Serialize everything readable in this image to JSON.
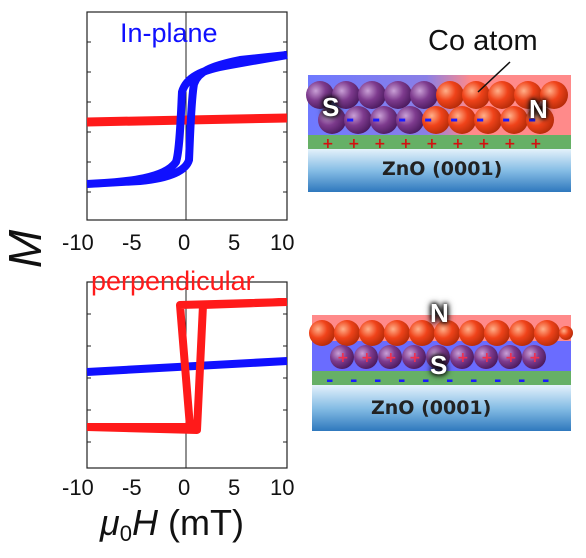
{
  "top_plot": {
    "label": "In-plane",
    "x_ticks": [
      "-10",
      "-5",
      "0",
      "5",
      "10"
    ]
  },
  "bottom_plot": {
    "label": "perpendicular",
    "x_ticks": [
      "-10",
      "-5",
      "0",
      "5",
      "10"
    ]
  },
  "y_axis_label": "M",
  "x_axis_label": {
    "mu": "μ",
    "sub": "0",
    "H": "H",
    "unit": " (mT)"
  },
  "top_schematic": {
    "callout": "Co atom",
    "pole_left": "S",
    "pole_right": "N",
    "substrate": "ZnO (0001)"
  },
  "bottom_schematic": {
    "pole_top": "N",
    "pole_bottom": "S",
    "substrate": "ZnO (0001)"
  },
  "colors": {
    "in_plane": "#1010ff",
    "perpendicular": "#ff1a1a"
  },
  "chart_data": [
    {
      "type": "line",
      "title": "In-plane",
      "xlim": [
        -10,
        10
      ],
      "series": [
        {
          "color": "blue",
          "x": [
            -10,
            -5,
            -2,
            -1,
            0,
            1,
            2,
            5,
            10
          ],
          "y": [
            -0.75,
            -0.65,
            -0.5,
            0.0,
            0.35,
            0.5,
            0.55,
            0.6,
            0.75
          ]
        },
        {
          "color": "red",
          "x": [
            -10,
            10
          ],
          "y": [
            0.0,
            0.02
          ]
        }
      ]
    },
    {
      "type": "line",
      "title": "perpendicular",
      "xlim": [
        -10,
        10
      ],
      "series": [
        {
          "color": "red",
          "x": [
            -10,
            -2,
            -1,
            1,
            2,
            10
          ],
          "y": [
            -0.8,
            -0.8,
            0.8,
            0.8,
            -0.8,
            0.8
          ]
        },
        {
          "color": "blue",
          "x": [
            -10,
            10
          ],
          "y": [
            -0.1,
            0.05
          ]
        }
      ]
    }
  ]
}
